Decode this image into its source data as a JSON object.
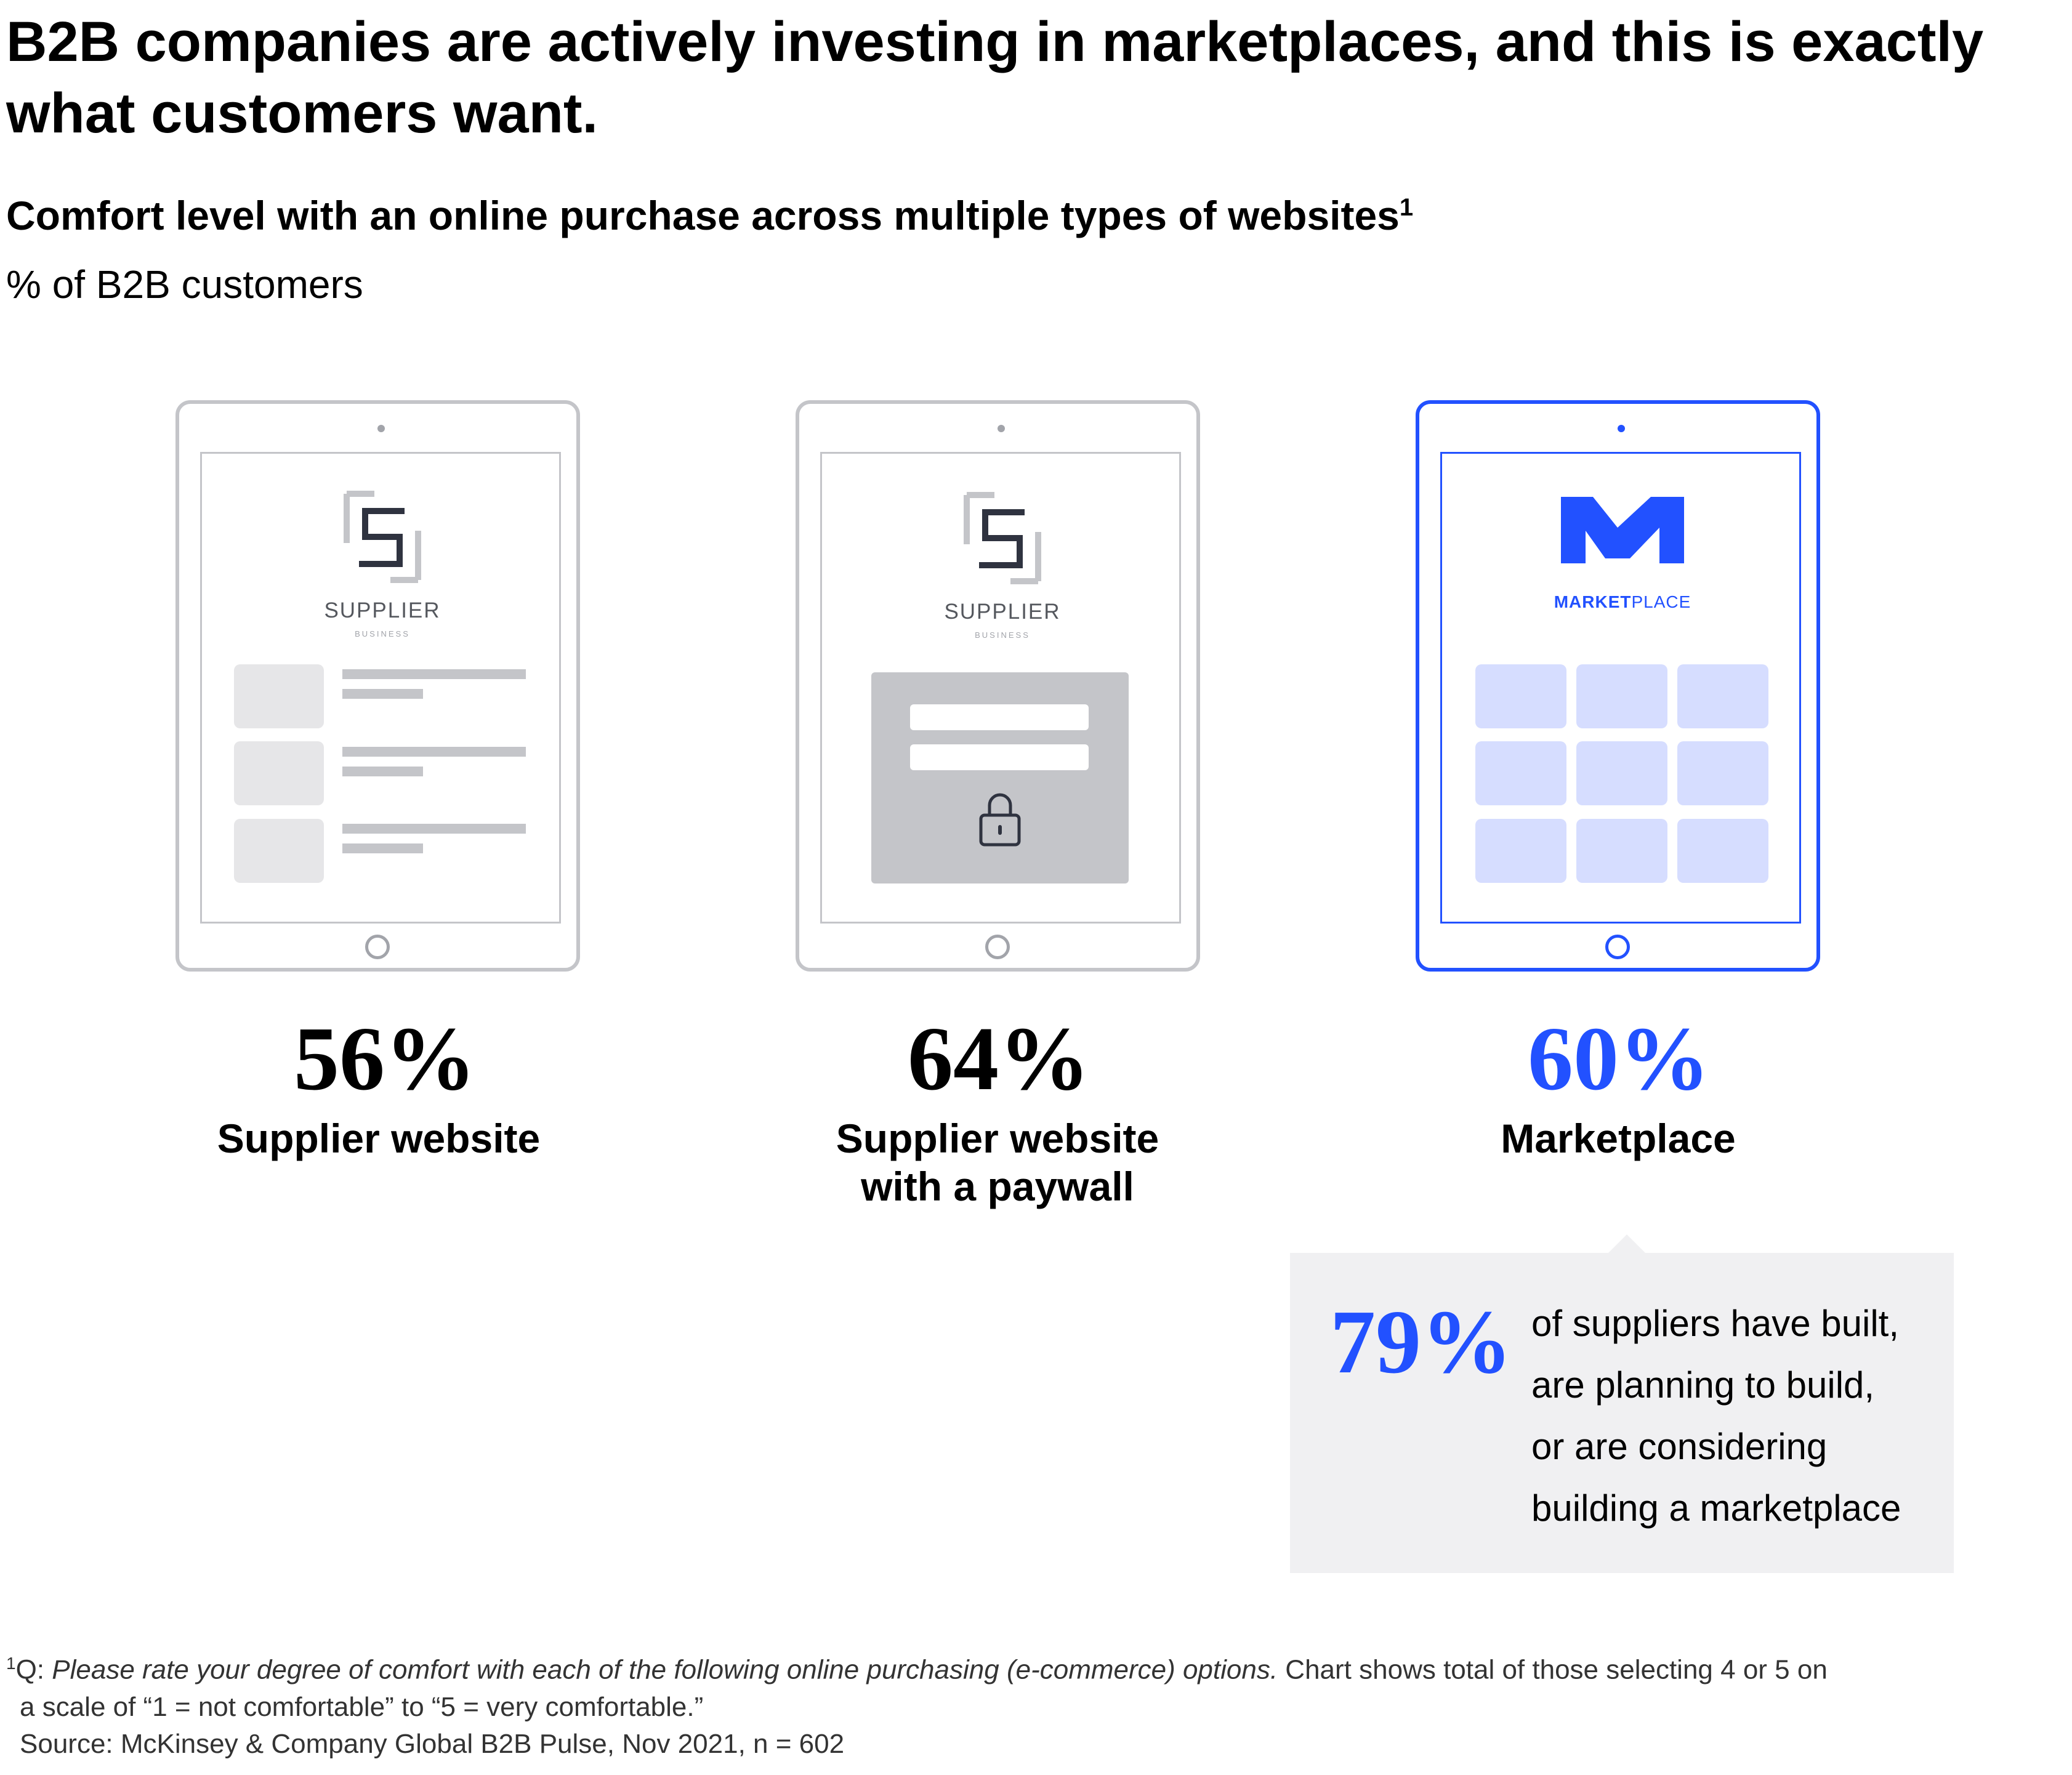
{
  "header": {
    "title": "B2B companies are actively investing in marketplaces, and this is exactly what customers want.",
    "subtitle": "Comfort level with an online purchase across multiple types of websites",
    "subtitle_footnote": "1",
    "unit": "% of B2B customers"
  },
  "chart_data": {
    "type": "bar",
    "title": "Comfort level with an online purchase across multiple types of websites",
    "ylabel": "% of B2B customers",
    "categories": [
      "Supplier website",
      "Supplier website with a paywall",
      "Marketplace"
    ],
    "values": [
      56,
      64,
      60
    ],
    "value_labels": [
      "56%",
      "64%",
      "60%"
    ],
    "highlight_category": "Marketplace",
    "highlight_color": "#2251ff"
  },
  "devices": [
    {
      "logo_text": "SUPPLIER",
      "logo_sub": "BUSINESS",
      "value": "56%",
      "label": "Supplier website"
    },
    {
      "logo_text": "SUPPLIER",
      "logo_sub": "BUSINESS",
      "value": "64%",
      "label_line1": "Supplier website",
      "label_line2": "with a paywall"
    },
    {
      "logo_text_bold": "MARKET",
      "logo_text_light": "PLACE",
      "value": "60%",
      "label": "Marketplace"
    }
  ],
  "callout": {
    "value": "79%",
    "lines": [
      "of suppliers have built,",
      "are planning to build,",
      "or are considering",
      "building a marketplace"
    ]
  },
  "footnote": {
    "marker": "1",
    "prefix": "Q: ",
    "question": "Please rate your degree of comfort with each of the following online purchasing (e-commerce) options.",
    "text": " Chart shows total of those selecting 4 or 5 on",
    "line2": "a scale of “1 = not comfortable” to “5 = very comfortable.”",
    "source": "Source: McKinsey & Company Global B2B Pulse, Nov 2021, n = 602"
  },
  "colors": {
    "accent": "#2251ff",
    "device_gray": "#c4c5c9",
    "callout_bg": "#f0f0f2"
  }
}
